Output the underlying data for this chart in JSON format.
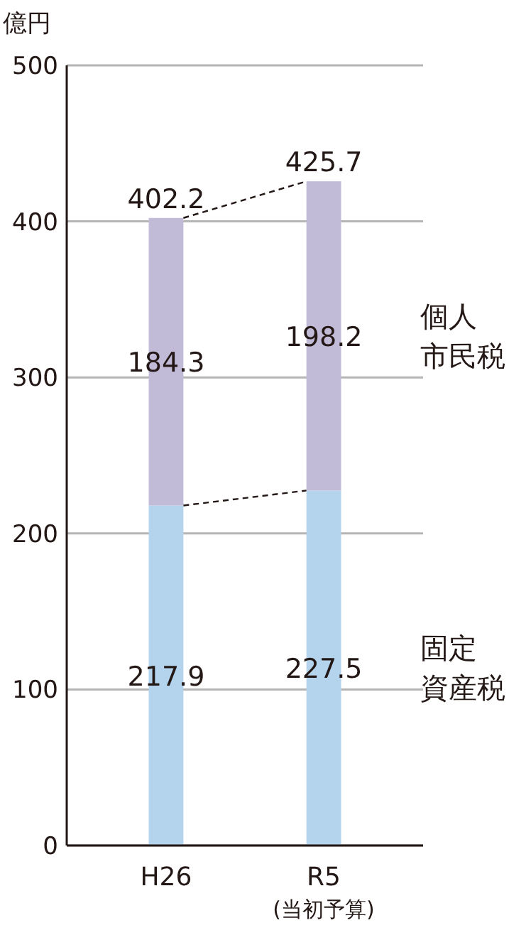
{
  "chart_data": {
    "type": "bar",
    "stacked": true,
    "ylabel": "億円",
    "categories": [
      "H26",
      "R5\n(当初予算)"
    ],
    "series": [
      {
        "name": "固定資産税",
        "color": "#b3d4ec",
        "values": [
          217.9,
          227.5
        ]
      },
      {
        "name": "個人市民税",
        "color": "#c2bbd8",
        "values": [
          184.3,
          198.2
        ]
      }
    ],
    "totals": [
      "402.2",
      "425.7"
    ],
    "data_labels": true,
    "ylim": [
      0,
      500
    ],
    "yticks": [
      0,
      100,
      200,
      300,
      400,
      500
    ],
    "grid": "y",
    "legend": "right"
  }
}
